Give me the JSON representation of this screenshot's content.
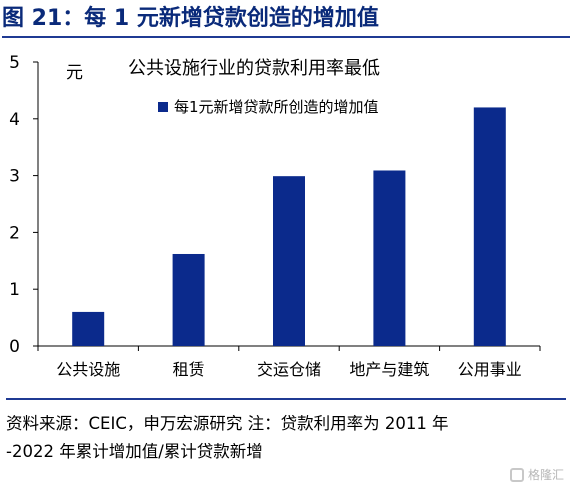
{
  "figure": {
    "title": "图 21：每 1 元新增贷款创造的增加值"
  },
  "chart_data": {
    "type": "bar",
    "title": "公共设施行业的贷款利用率最低",
    "ylabel": "元",
    "xlabel": "",
    "categories": [
      "公共设施",
      "租赁",
      "交运仓储",
      "地产与建筑",
      "公用事业"
    ],
    "series": [
      {
        "name": "每1元新增贷款所创造的增加值",
        "values": [
          0.6,
          1.62,
          2.99,
          3.09,
          4.2
        ]
      }
    ],
    "ylim": [
      0,
      5
    ],
    "yticks": [
      "0",
      "1",
      "2",
      "3",
      "4",
      "5"
    ],
    "grid": false,
    "legend_position": "top-center",
    "bar_color": "#0b2a8c"
  },
  "source": {
    "line1": "资料来源：CEIC，申万宏源研究 注：贷款利用率为 2011 年",
    "line2": "-2022 年累计增加值/累计贷款新增"
  },
  "watermark": {
    "icon": "brand-logo-icon",
    "text": "格隆汇"
  }
}
